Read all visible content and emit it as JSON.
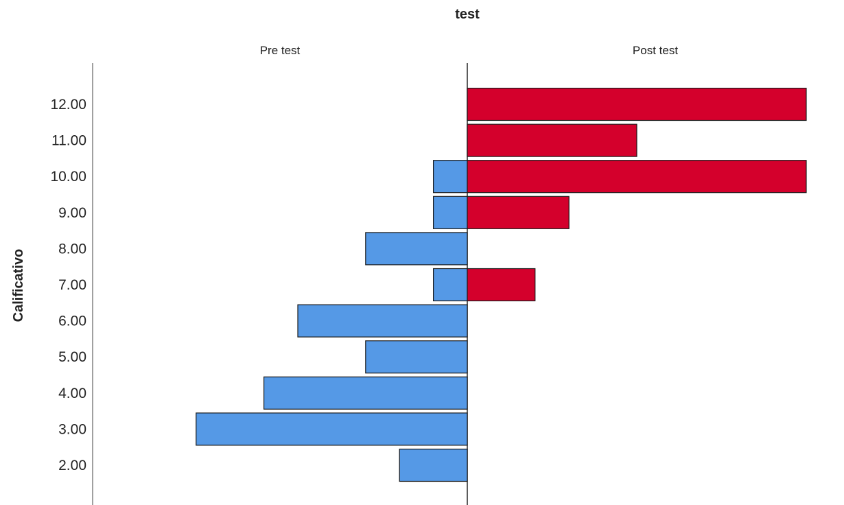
{
  "chart_data": {
    "type": "bar",
    "orientation": "horizontal-pyramid",
    "title": "test",
    "ylabel": "Calificativo",
    "categories": [
      "12.00",
      "11.00",
      "10.00",
      "9.00",
      "8.00",
      "7.00",
      "6.00",
      "5.00",
      "4.00",
      "3.00",
      "2.00"
    ],
    "series": [
      {
        "name": "Pre test",
        "color": "#5599e6",
        "side": "left",
        "values": [
          0,
          0,
          1,
          1,
          3,
          1,
          5,
          3,
          6,
          8,
          2
        ]
      },
      {
        "name": "Post test",
        "color": "#d4002c",
        "side": "right",
        "values": [
          10,
          5,
          10,
          3,
          0,
          2,
          0,
          0,
          0,
          0,
          0
        ]
      }
    ],
    "xlim": [
      0,
      11
    ],
    "grid": false
  }
}
